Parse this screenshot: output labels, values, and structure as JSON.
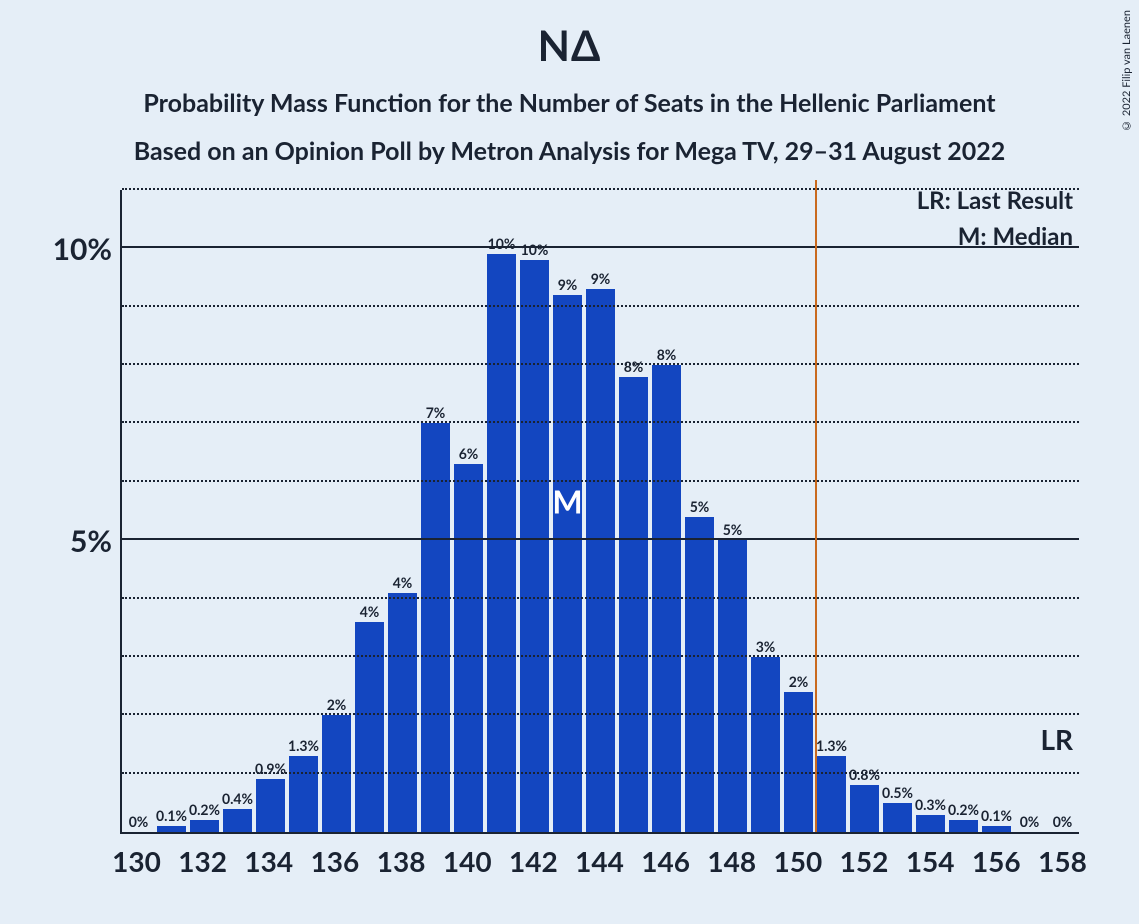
{
  "title": "ΝΔ",
  "subtitle1": "Probability Mass Function for the Number of Seats in the Hellenic Parliament",
  "subtitle2": "Based on an Opinion Poll by Metron Analysis for Mega TV, 29–31 August 2022",
  "copyright": "© 2022 Filip van Laenen",
  "legend_lr": "LR: Last Result",
  "legend_m": "M: Median",
  "lr_axis_label": "LR",
  "median_mark": "M",
  "chart": {
    "type": "bar",
    "bar_color": "#1346c0",
    "background_color": "#e5eef7",
    "text_color": "#1a2332",
    "lr_line_color": "#c96a1f",
    "ylim": [
      0,
      11
    ],
    "y_major_ticks": [
      5,
      10
    ],
    "y_minor_step": 1,
    "x_tick_step": 2,
    "x_range": [
      130,
      158
    ],
    "bar_gap_pct": 10,
    "median_seat": 143,
    "lr_seat": 151,
    "bars": [
      {
        "seat": 130,
        "value": 0.0,
        "label": "0%"
      },
      {
        "seat": 131,
        "value": 0.1,
        "label": "0.1%"
      },
      {
        "seat": 132,
        "value": 0.2,
        "label": "0.2%"
      },
      {
        "seat": 133,
        "value": 0.4,
        "label": "0.4%"
      },
      {
        "seat": 134,
        "value": 0.9,
        "label": "0.9%"
      },
      {
        "seat": 135,
        "value": 1.3,
        "label": "1.3%"
      },
      {
        "seat": 136,
        "value": 2.0,
        "label": "2%"
      },
      {
        "seat": 137,
        "value": 3.6,
        "label": "4%"
      },
      {
        "seat": 138,
        "value": 4.1,
        "label": "4%"
      },
      {
        "seat": 139,
        "value": 7.0,
        "label": "7%"
      },
      {
        "seat": 140,
        "value": 6.3,
        "label": "6%"
      },
      {
        "seat": 141,
        "value": 9.9,
        "label": "10%"
      },
      {
        "seat": 142,
        "value": 9.8,
        "label": "10%"
      },
      {
        "seat": 143,
        "value": 9.2,
        "label": "9%"
      },
      {
        "seat": 144,
        "value": 9.3,
        "label": "9%"
      },
      {
        "seat": 145,
        "value": 7.8,
        "label": "8%"
      },
      {
        "seat": 146,
        "value": 8.0,
        "label": "8%"
      },
      {
        "seat": 147,
        "value": 5.4,
        "label": "5%"
      },
      {
        "seat": 148,
        "value": 5.0,
        "label": "5%"
      },
      {
        "seat": 149,
        "value": 3.0,
        "label": "3%"
      },
      {
        "seat": 150,
        "value": 2.4,
        "label": "2%"
      },
      {
        "seat": 151,
        "value": 1.3,
        "label": "1.3%"
      },
      {
        "seat": 152,
        "value": 0.8,
        "label": "0.8%"
      },
      {
        "seat": 153,
        "value": 0.5,
        "label": "0.5%"
      },
      {
        "seat": 154,
        "value": 0.3,
        "label": "0.3%"
      },
      {
        "seat": 155,
        "value": 0.2,
        "label": "0.2%"
      },
      {
        "seat": 156,
        "value": 0.1,
        "label": "0.1%"
      },
      {
        "seat": 157,
        "value": 0.0,
        "label": "0%"
      },
      {
        "seat": 158,
        "value": 0.0,
        "label": "0%"
      }
    ]
  }
}
